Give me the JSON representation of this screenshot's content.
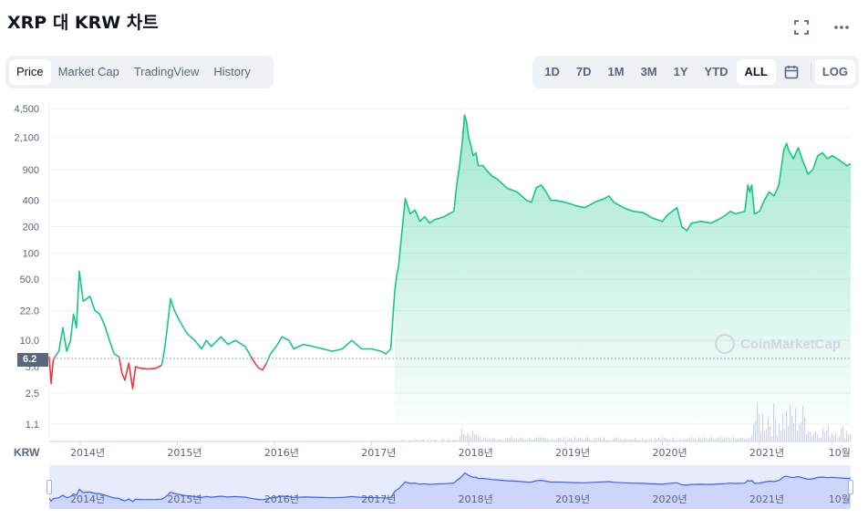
{
  "title": "XRP 대 KRW 차트",
  "top_icons": [
    "expand-icon",
    "more-icon"
  ],
  "tabs_left": [
    {
      "label": "Price",
      "active": true
    },
    {
      "label": "Market Cap",
      "active": false
    },
    {
      "label": "TradingView",
      "active": false
    },
    {
      "label": "History",
      "active": false
    }
  ],
  "tabs_right": [
    {
      "label": "1D",
      "active": false
    },
    {
      "label": "7D",
      "active": false
    },
    {
      "label": "1M",
      "active": false
    },
    {
      "label": "3M",
      "active": false
    },
    {
      "label": "1Y",
      "active": false
    },
    {
      "label": "YTD",
      "active": false
    },
    {
      "label": "ALL",
      "active": true
    }
  ],
  "calendar_icon": "calendar-icon",
  "log_label": "LOG",
  "currency_label": "KRW",
  "watermark": "CoinMarketCap",
  "colors": {
    "up": "#16c784",
    "down": "#ea3943",
    "volume": "#cfd6e4",
    "nav_line": "#3861fb",
    "nav_bg": "#e8ebfc"
  },
  "chart_data": {
    "type": "area",
    "scale": "log",
    "ylim": [
      1.1,
      4500
    ],
    "yticks": [
      4500,
      2100,
      900,
      400,
      200,
      100,
      50.0,
      22.0,
      10.0,
      5.0,
      2.5,
      1.1
    ],
    "ytick_labels": [
      "4,500",
      "2,100",
      "900",
      "400",
      "200",
      "100",
      "50.0",
      "22.0",
      "10.0",
      "5.0",
      "2.5",
      "1.1"
    ],
    "xlim": [
      2013.68,
      2021.94
    ],
    "xticks": [
      2014,
      2015,
      2016,
      2017,
      2018,
      2019,
      2020,
      2021,
      2021.75
    ],
    "xtick_labels": [
      "2014년",
      "2015년",
      "2016년",
      "2017년",
      "2018년",
      "2019년",
      "2020년",
      "2021년",
      "10월"
    ],
    "reference_price": 6.2,
    "reference_label": "6.2",
    "grid": true,
    "series": [
      {
        "color": "#ea3943",
        "points": [
          [
            2013.68,
            6.5
          ],
          [
            2013.7,
            3.2
          ],
          [
            2013.72,
            5.8
          ],
          [
            2013.74,
            6.5
          ]
        ]
      },
      {
        "color": "#16c784",
        "points": [
          [
            2013.74,
            6.5
          ],
          [
            2013.78,
            7.5
          ],
          [
            2013.82,
            14
          ],
          [
            2013.86,
            7.5
          ],
          [
            2013.9,
            10
          ],
          [
            2013.93,
            20
          ],
          [
            2013.96,
            14
          ],
          [
            2013.99,
            62
          ],
          [
            2014.03,
            28
          ],
          [
            2014.1,
            32
          ],
          [
            2014.15,
            22
          ],
          [
            2014.2,
            20
          ],
          [
            2014.25,
            15
          ],
          [
            2014.3,
            10
          ],
          [
            2014.35,
            7
          ],
          [
            2014.4,
            6.5
          ]
        ]
      },
      {
        "color": "#ea3943",
        "points": [
          [
            2014.4,
            6.5
          ],
          [
            2014.43,
            4.2
          ],
          [
            2014.46,
            3.5
          ],
          [
            2014.5,
            5.5
          ],
          [
            2014.54,
            2.8
          ],
          [
            2014.57,
            5.0
          ],
          [
            2014.62,
            4.8
          ],
          [
            2014.7,
            4.7
          ],
          [
            2014.78,
            4.8
          ],
          [
            2014.84,
            5.2
          ]
        ]
      },
      {
        "color": "#16c784",
        "points": [
          [
            2014.84,
            5.2
          ],
          [
            2014.87,
            8
          ],
          [
            2014.9,
            15
          ],
          [
            2014.93,
            30
          ],
          [
            2014.97,
            22
          ],
          [
            2015.02,
            17
          ],
          [
            2015.1,
            12
          ],
          [
            2015.18,
            10
          ],
          [
            2015.25,
            8
          ],
          [
            2015.3,
            10
          ],
          [
            2015.35,
            8.5
          ],
          [
            2015.45,
            11
          ],
          [
            2015.52,
            9
          ],
          [
            2015.6,
            10
          ],
          [
            2015.7,
            8.5
          ],
          [
            2015.76,
            6.5
          ]
        ]
      },
      {
        "color": "#ea3943",
        "points": [
          [
            2015.76,
            6.5
          ],
          [
            2015.8,
            5.5
          ],
          [
            2015.84,
            4.8
          ],
          [
            2015.88,
            4.6
          ],
          [
            2015.92,
            5.5
          ]
        ]
      },
      {
        "color": "#16c784",
        "points": [
          [
            2015.92,
            5.5
          ],
          [
            2015.96,
            7
          ],
          [
            2016.02,
            8.5
          ],
          [
            2016.08,
            11
          ],
          [
            2016.15,
            10
          ],
          [
            2016.2,
            8
          ],
          [
            2016.3,
            9
          ],
          [
            2016.4,
            8.5
          ],
          [
            2016.5,
            8
          ],
          [
            2016.6,
            7.5
          ],
          [
            2016.7,
            8
          ],
          [
            2016.8,
            10
          ],
          [
            2016.9,
            8
          ],
          [
            2017.0,
            8
          ],
          [
            2017.1,
            7.5
          ],
          [
            2017.15,
            7
          ],
          [
            2017.2,
            8
          ],
          [
            2017.24,
            35
          ],
          [
            2017.26,
            55
          ],
          [
            2017.28,
            70
          ],
          [
            2017.32,
            200
          ],
          [
            2017.35,
            420
          ],
          [
            2017.4,
            280
          ],
          [
            2017.45,
            310
          ],
          [
            2017.5,
            230
          ],
          [
            2017.55,
            260
          ],
          [
            2017.6,
            220
          ],
          [
            2017.65,
            240
          ],
          [
            2017.7,
            250
          ],
          [
            2017.75,
            260
          ],
          [
            2017.8,
            280
          ],
          [
            2017.85,
            300
          ],
          [
            2017.88,
            600
          ],
          [
            2017.91,
            1000
          ],
          [
            2017.94,
            2000
          ],
          [
            2017.96,
            3800
          ],
          [
            2017.98,
            3200
          ],
          [
            2018.0,
            2200
          ],
          [
            2018.02,
            1800
          ],
          [
            2018.05,
            1300
          ],
          [
            2018.08,
            1400
          ],
          [
            2018.1,
            1000
          ],
          [
            2018.15,
            1000
          ],
          [
            2018.2,
            850
          ],
          [
            2018.25,
            750
          ],
          [
            2018.3,
            700
          ],
          [
            2018.4,
            550
          ],
          [
            2018.5,
            500
          ],
          [
            2018.55,
            450
          ],
          [
            2018.6,
            400
          ],
          [
            2018.65,
            380
          ],
          [
            2018.7,
            560
          ],
          [
            2018.75,
            600
          ],
          [
            2018.8,
            500
          ],
          [
            2018.85,
            400
          ],
          [
            2018.9,
            400
          ],
          [
            2019.0,
            380
          ],
          [
            2019.1,
            350
          ],
          [
            2019.2,
            330
          ],
          [
            2019.3,
            380
          ],
          [
            2019.4,
            420
          ],
          [
            2019.45,
            450
          ],
          [
            2019.5,
            380
          ],
          [
            2019.6,
            330
          ],
          [
            2019.7,
            300
          ],
          [
            2019.8,
            290
          ],
          [
            2019.9,
            250
          ],
          [
            2020.0,
            230
          ],
          [
            2020.05,
            270
          ],
          [
            2020.1,
            300
          ],
          [
            2020.15,
            330
          ],
          [
            2020.2,
            200
          ],
          [
            2020.25,
            180
          ],
          [
            2020.3,
            220
          ],
          [
            2020.4,
            230
          ],
          [
            2020.5,
            220
          ],
          [
            2020.6,
            250
          ],
          [
            2020.65,
            270
          ],
          [
            2020.7,
            300
          ],
          [
            2020.75,
            280
          ],
          [
            2020.8,
            290
          ],
          [
            2020.85,
            300
          ],
          [
            2020.88,
            600
          ],
          [
            2020.9,
            500
          ],
          [
            2020.92,
            600
          ],
          [
            2020.95,
            280
          ],
          [
            2021.0,
            300
          ],
          [
            2021.05,
            400
          ],
          [
            2021.1,
            500
          ],
          [
            2021.15,
            450
          ],
          [
            2021.2,
            600
          ],
          [
            2021.25,
            1500
          ],
          [
            2021.28,
            1800
          ],
          [
            2021.3,
            1500
          ],
          [
            2021.35,
            1200
          ],
          [
            2021.4,
            1600
          ],
          [
            2021.45,
            1100
          ],
          [
            2021.5,
            800
          ],
          [
            2021.55,
            900
          ],
          [
            2021.6,
            1300
          ],
          [
            2021.65,
            1400
          ],
          [
            2021.7,
            1200
          ],
          [
            2021.75,
            1300
          ],
          [
            2021.8,
            1200
          ],
          [
            2021.85,
            1100
          ],
          [
            2021.9,
            1000
          ],
          [
            2021.94,
            1050
          ]
        ]
      }
    ]
  }
}
